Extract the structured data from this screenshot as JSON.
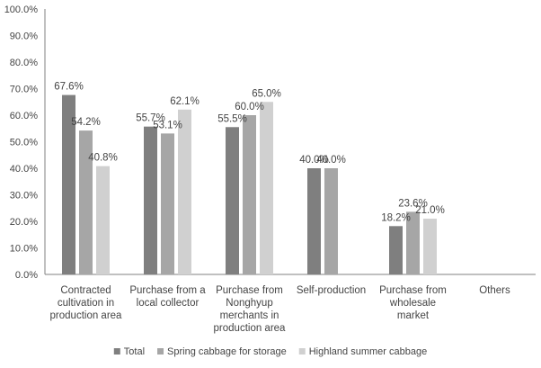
{
  "chart_data": {
    "type": "bar",
    "categories": [
      [
        "Contracted",
        "cultivation in",
        "production area"
      ],
      [
        "Purchase from a",
        "local collector"
      ],
      [
        "Purchase from",
        "Nonghyup",
        "merchants in",
        "production area"
      ],
      [
        "Self-production"
      ],
      [
        "Purchase from",
        "wholesale",
        "market"
      ],
      [
        "Others"
      ]
    ],
    "series": [
      {
        "name": "Total",
        "values": [
          67.6,
          55.7,
          55.5,
          40.0,
          18.2,
          null
        ],
        "labels": [
          "67.6%",
          "55.7%",
          "55.5%",
          "40.0%",
          "18.2%",
          ""
        ],
        "color": "#7f7f7f"
      },
      {
        "name": "Spring cabbage for storage",
        "values": [
          54.2,
          53.1,
          60.0,
          40.0,
          23.6,
          null
        ],
        "labels": [
          "54.2%",
          "53.1%",
          "60.0%",
          "40.0%",
          "23.6%",
          ""
        ],
        "color": "#a6a6a6"
      },
      {
        "name": "Highland summer cabbage",
        "values": [
          40.8,
          62.1,
          65.0,
          null,
          21.0,
          null
        ],
        "labels": [
          "40.8%",
          "62.1%",
          "65.0%",
          "",
          "21.0%",
          ""
        ],
        "color": "#d0d0d0"
      }
    ],
    "ylim": [
      0,
      100
    ],
    "yticks": [
      "0.0%",
      "10.0%",
      "20.0%",
      "30.0%",
      "40.0%",
      "50.0%",
      "60.0%",
      "70.0%",
      "80.0%",
      "90.0%",
      "100.0%"
    ],
    "grid": false,
    "legend_position": "bottom",
    "axis_color": "#808080"
  }
}
